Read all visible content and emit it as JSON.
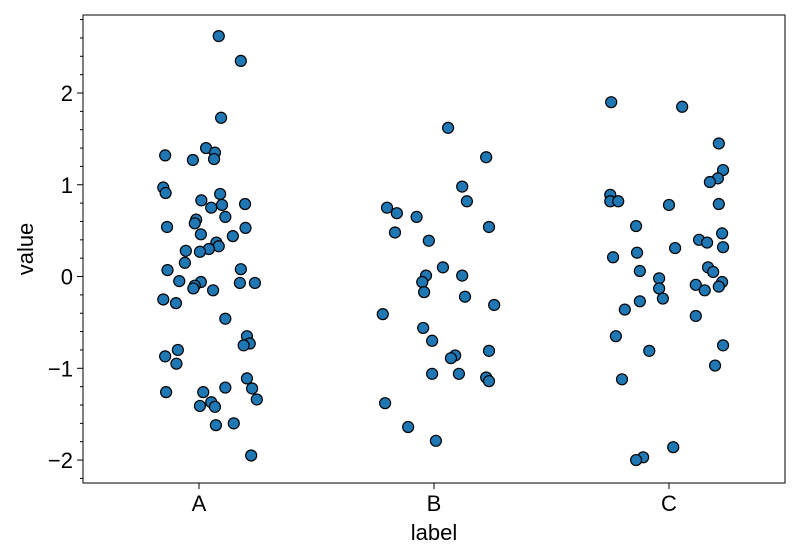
{
  "chart_data": {
    "type": "scatter",
    "title": "",
    "xlabel": "label",
    "ylabel": "value",
    "categories": [
      "A",
      "B",
      "C"
    ],
    "ylim": [
      -2.25,
      2.85
    ],
    "yticks": [
      -2,
      -1,
      0,
      1,
      2
    ],
    "ytick_labels": [
      "−2",
      "−1",
      "0",
      "1",
      "2"
    ],
    "grid": false,
    "marker_color": "#1f77b4",
    "marker_edge": "#000000",
    "series": [
      {
        "category": "A",
        "points": [
          {
            "jitter": 0.42,
            "value": 2.62
          },
          {
            "jitter": 0.89,
            "value": 2.35
          },
          {
            "jitter": 0.47,
            "value": 1.73
          },
          {
            "jitter": -0.72,
            "value": 1.32
          },
          {
            "jitter": -0.13,
            "value": 1.27
          },
          {
            "jitter": 0.15,
            "value": 1.4
          },
          {
            "jitter": 0.34,
            "value": 1.35
          },
          {
            "jitter": 0.32,
            "value": 1.28
          },
          {
            "jitter": -0.76,
            "value": 0.97
          },
          {
            "jitter": -0.71,
            "value": 0.91
          },
          {
            "jitter": 0.45,
            "value": 0.9
          },
          {
            "jitter": 0.05,
            "value": 0.83
          },
          {
            "jitter": 0.49,
            "value": 0.78
          },
          {
            "jitter": 0.98,
            "value": 0.79
          },
          {
            "jitter": 0.26,
            "value": 0.75
          },
          {
            "jitter": -0.06,
            "value": 0.62
          },
          {
            "jitter": -0.09,
            "value": 0.58
          },
          {
            "jitter": 0.56,
            "value": 0.65
          },
          {
            "jitter": -0.68,
            "value": 0.54
          },
          {
            "jitter": 0.99,
            "value": 0.53
          },
          {
            "jitter": 0.04,
            "value": 0.46
          },
          {
            "jitter": 0.72,
            "value": 0.44
          },
          {
            "jitter": 0.37,
            "value": 0.37
          },
          {
            "jitter": 0.42,
            "value": 0.33
          },
          {
            "jitter": 0.21,
            "value": 0.3
          },
          {
            "jitter": -0.28,
            "value": 0.28
          },
          {
            "jitter": 0.02,
            "value": 0.27
          },
          {
            "jitter": -0.3,
            "value": 0.15
          },
          {
            "jitter": -0.67,
            "value": 0.07
          },
          {
            "jitter": 0.89,
            "value": 0.08
          },
          {
            "jitter": -0.42,
            "value": -0.05
          },
          {
            "jitter": 0.04,
            "value": -0.06
          },
          {
            "jitter": -0.09,
            "value": -0.1
          },
          {
            "jitter": -0.12,
            "value": -0.13
          },
          {
            "jitter": 0.87,
            "value": -0.07
          },
          {
            "jitter": 1.19,
            "value": -0.07
          },
          {
            "jitter": 0.3,
            "value": -0.15
          },
          {
            "jitter": -0.76,
            "value": -0.25
          },
          {
            "jitter": -0.49,
            "value": -0.29
          },
          {
            "jitter": 0.56,
            "value": -0.46
          },
          {
            "jitter": 1.02,
            "value": -0.65
          },
          {
            "jitter": 1.08,
            "value": -0.73
          },
          {
            "jitter": 0.95,
            "value": -0.75
          },
          {
            "jitter": -0.45,
            "value": -0.8
          },
          {
            "jitter": -0.72,
            "value": -0.87
          },
          {
            "jitter": -0.48,
            "value": -0.95
          },
          {
            "jitter": 1.02,
            "value": -1.11
          },
          {
            "jitter": 0.56,
            "value": -1.21
          },
          {
            "jitter": 1.13,
            "value": -1.22
          },
          {
            "jitter": -0.7,
            "value": -1.26
          },
          {
            "jitter": 0.09,
            "value": -1.26
          },
          {
            "jitter": 1.23,
            "value": -1.34
          },
          {
            "jitter": 0.26,
            "value": -1.37
          },
          {
            "jitter": 0.02,
            "value": -1.41
          },
          {
            "jitter": 0.34,
            "value": -1.42
          },
          {
            "jitter": 0.74,
            "value": -1.6
          },
          {
            "jitter": 0.36,
            "value": -1.62
          },
          {
            "jitter": 1.11,
            "value": -1.95
          }
        ]
      },
      {
        "category": "B",
        "points": [
          {
            "jitter": 0.3,
            "value": 1.62
          },
          {
            "jitter": 1.11,
            "value": 1.3
          },
          {
            "jitter": 0.6,
            "value": 0.98
          },
          {
            "jitter": 0.7,
            "value": 0.82
          },
          {
            "jitter": -1.0,
            "value": 0.75
          },
          {
            "jitter": -0.79,
            "value": 0.69
          },
          {
            "jitter": -0.37,
            "value": 0.65
          },
          {
            "jitter": 1.17,
            "value": 0.54
          },
          {
            "jitter": -0.83,
            "value": 0.48
          },
          {
            "jitter": -0.11,
            "value": 0.39
          },
          {
            "jitter": 0.19,
            "value": 0.1
          },
          {
            "jitter": -0.17,
            "value": 0.01
          },
          {
            "jitter": 0.6,
            "value": 0.01
          },
          {
            "jitter": -0.25,
            "value": -0.06
          },
          {
            "jitter": -0.21,
            "value": -0.17
          },
          {
            "jitter": 0.66,
            "value": -0.22
          },
          {
            "jitter": 1.28,
            "value": -0.31
          },
          {
            "jitter": -1.09,
            "value": -0.41
          },
          {
            "jitter": -0.23,
            "value": -0.56
          },
          {
            "jitter": -0.04,
            "value": -0.7
          },
          {
            "jitter": 1.17,
            "value": -0.81
          },
          {
            "jitter": 0.45,
            "value": -0.86
          },
          {
            "jitter": 0.36,
            "value": -0.89
          },
          {
            "jitter": -0.04,
            "value": -1.06
          },
          {
            "jitter": 0.53,
            "value": -1.06
          },
          {
            "jitter": 1.11,
            "value": -1.1
          },
          {
            "jitter": 1.17,
            "value": -1.14
          },
          {
            "jitter": -1.04,
            "value": -1.38
          },
          {
            "jitter": -0.55,
            "value": -1.64
          },
          {
            "jitter": 0.04,
            "value": -1.79
          }
        ]
      },
      {
        "category": "C",
        "points": [
          {
            "jitter": -1.23,
            "value": 1.9
          },
          {
            "jitter": 0.28,
            "value": 1.85
          },
          {
            "jitter": 1.06,
            "value": 1.45
          },
          {
            "jitter": 1.15,
            "value": 1.16
          },
          {
            "jitter": 1.04,
            "value": 1.07
          },
          {
            "jitter": 0.87,
            "value": 1.03
          },
          {
            "jitter": -1.25,
            "value": 0.89
          },
          {
            "jitter": -1.25,
            "value": 0.82
          },
          {
            "jitter": -1.08,
            "value": 0.82
          },
          {
            "jitter": 0.0,
            "value": 0.78
          },
          {
            "jitter": 1.06,
            "value": 0.79
          },
          {
            "jitter": -0.7,
            "value": 0.55
          },
          {
            "jitter": 1.13,
            "value": 0.47
          },
          {
            "jitter": 0.64,
            "value": 0.4
          },
          {
            "jitter": 0.81,
            "value": 0.37
          },
          {
            "jitter": 1.15,
            "value": 0.32
          },
          {
            "jitter": 0.13,
            "value": 0.31
          },
          {
            "jitter": -0.68,
            "value": 0.26
          },
          {
            "jitter": -1.19,
            "value": 0.21
          },
          {
            "jitter": 0.83,
            "value": 0.1
          },
          {
            "jitter": 0.94,
            "value": 0.05
          },
          {
            "jitter": -0.62,
            "value": 0.06
          },
          {
            "jitter": -0.21,
            "value": -0.02
          },
          {
            "jitter": 1.13,
            "value": -0.06
          },
          {
            "jitter": 0.57,
            "value": -0.09
          },
          {
            "jitter": -0.21,
            "value": -0.13
          },
          {
            "jitter": 1.06,
            "value": -0.11
          },
          {
            "jitter": 0.76,
            "value": -0.15
          },
          {
            "jitter": -0.13,
            "value": -0.24
          },
          {
            "jitter": -0.62,
            "value": -0.27
          },
          {
            "jitter": -0.94,
            "value": -0.36
          },
          {
            "jitter": 0.57,
            "value": -0.43
          },
          {
            "jitter": -1.13,
            "value": -0.65
          },
          {
            "jitter": 1.15,
            "value": -0.75
          },
          {
            "jitter": -0.42,
            "value": -0.81
          },
          {
            "jitter": 0.98,
            "value": -0.97
          },
          {
            "jitter": -1.0,
            "value": -1.12
          },
          {
            "jitter": 0.09,
            "value": -1.86
          },
          {
            "jitter": -0.55,
            "value": -1.97
          },
          {
            "jitter": -0.7,
            "value": -2.0
          }
        ]
      }
    ]
  }
}
